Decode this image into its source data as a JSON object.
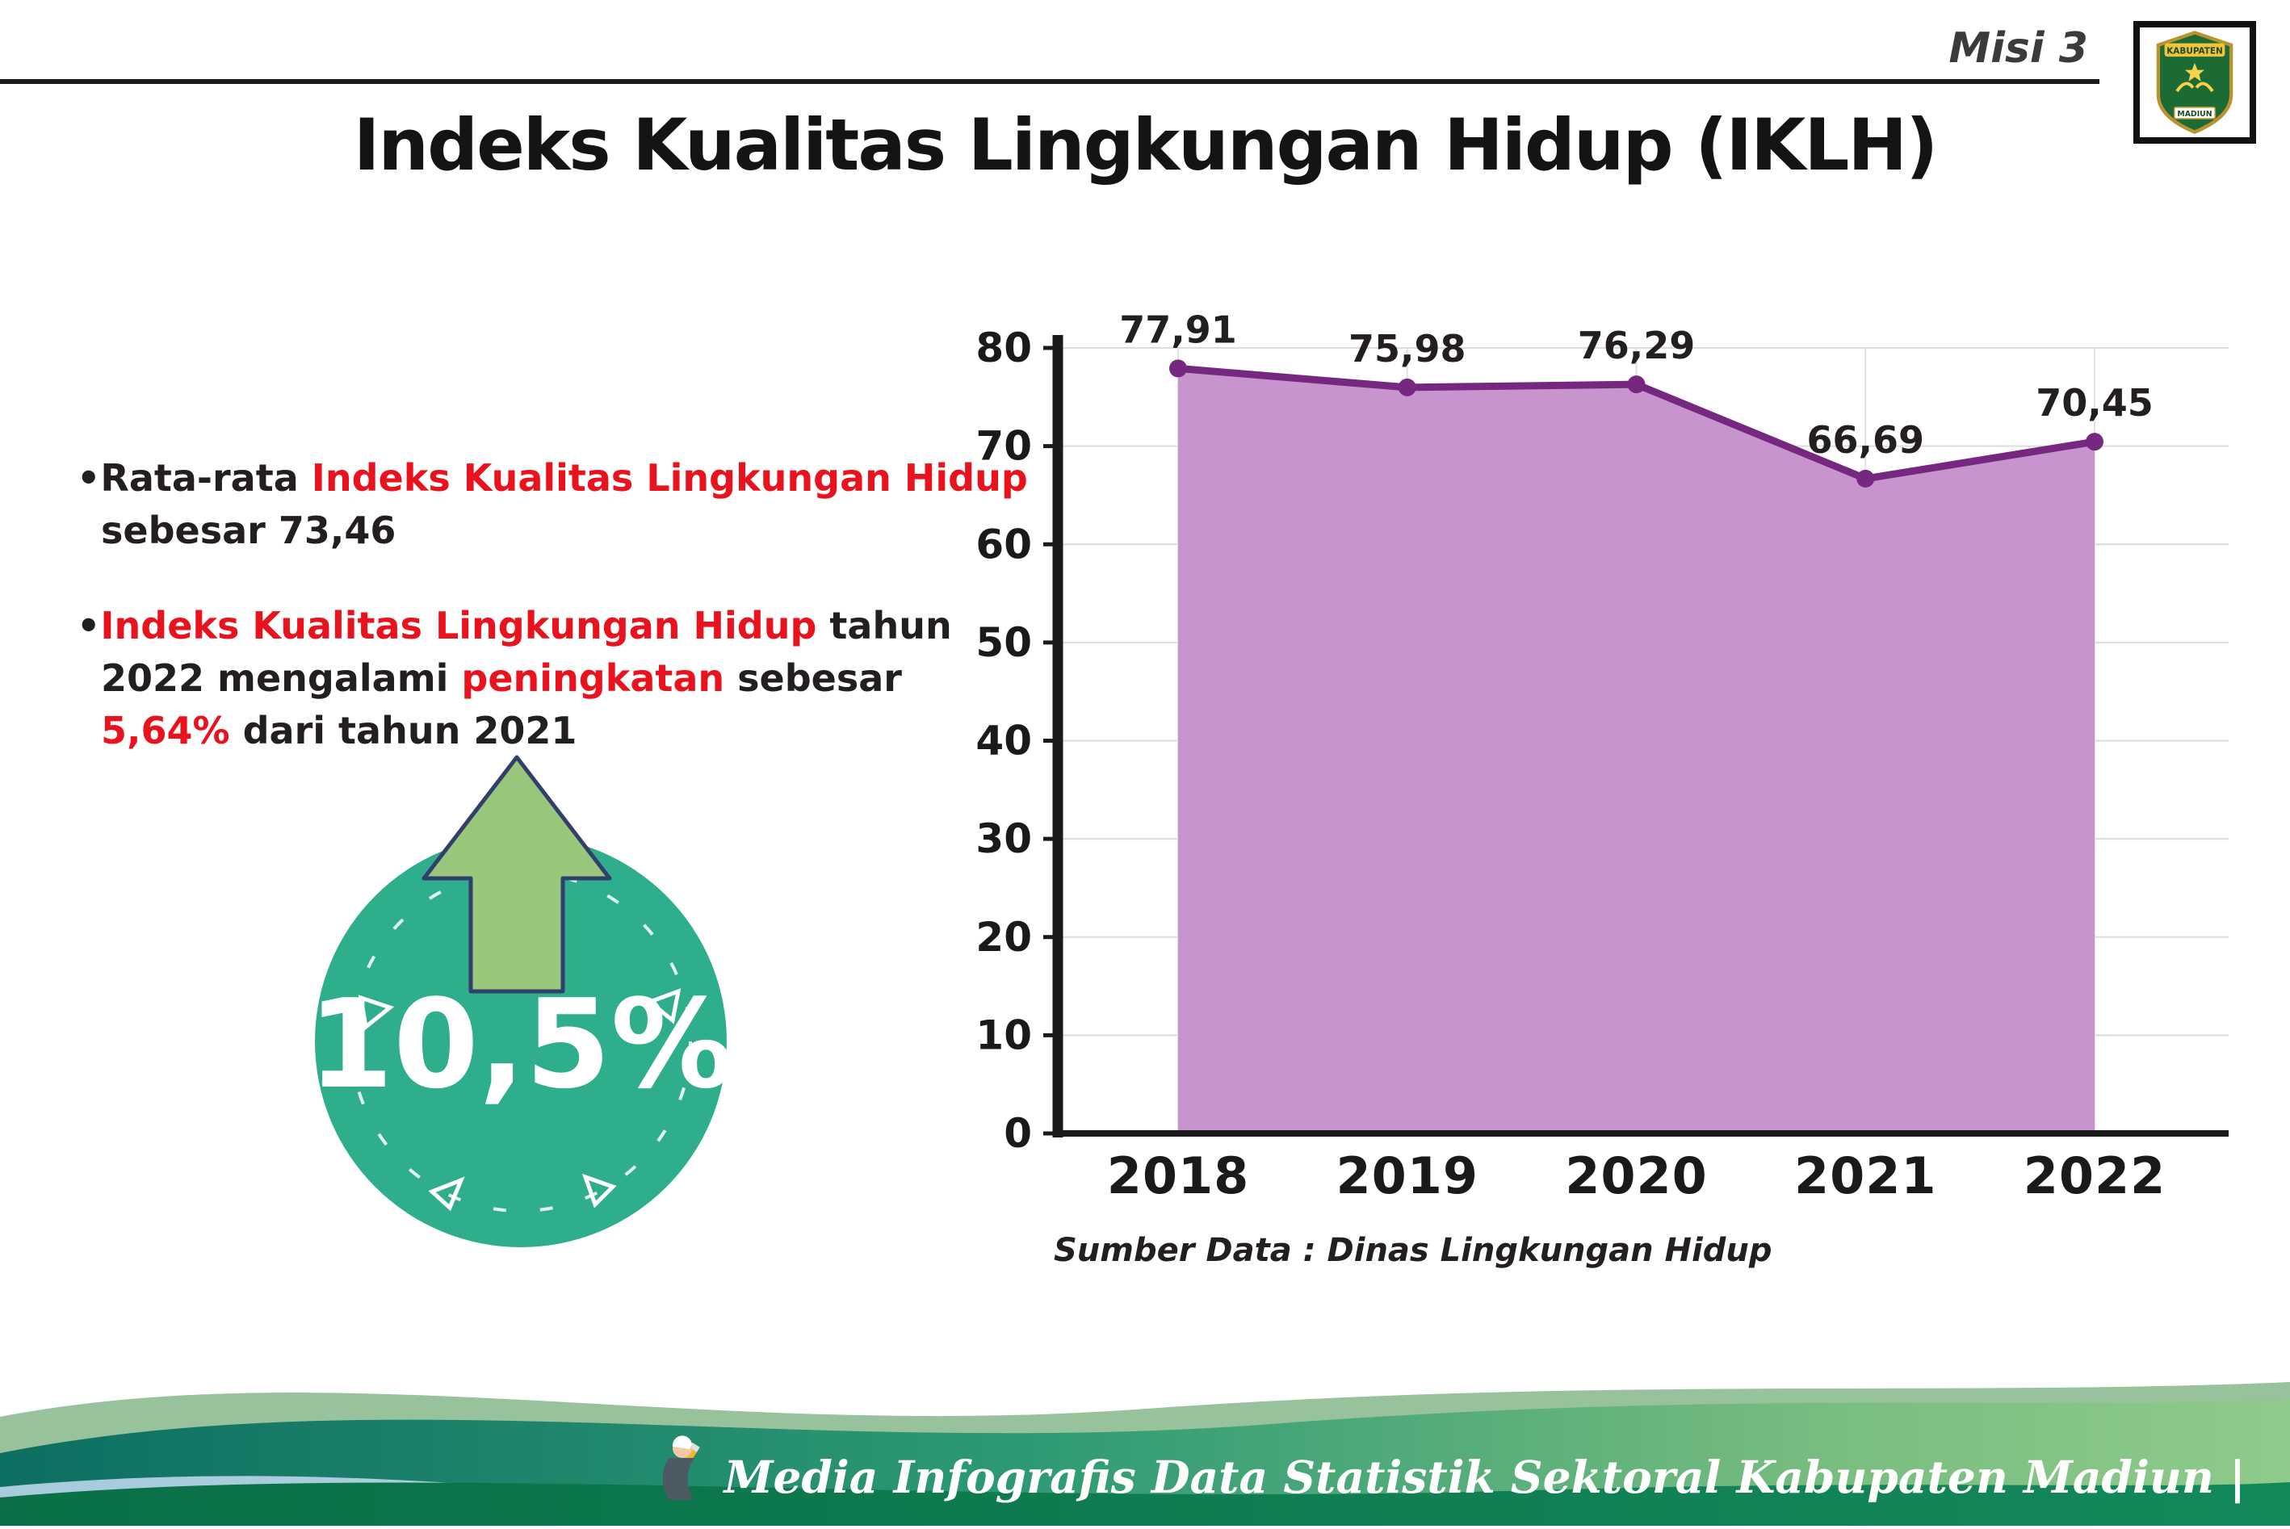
{
  "colors": {
    "teal": "#2fae8e",
    "arrow_green": "#98c67a",
    "arrow_outline": "#333f6b",
    "red": "#e8131d",
    "line_purple": "#76277f",
    "area_purple": "#c794ce",
    "ink": "#231f20"
  },
  "header": {
    "misi_label": "Misi 3",
    "title": "Indeks Kualitas Lingkungan Hidup (IKLH)",
    "logo_top_text": "KABUPATEN",
    "logo_bottom_text": "MADIUN"
  },
  "bullet_glyph": "•",
  "bullets": {
    "b1": {
      "seg1": "Rata-rata ",
      "seg2": "Indeks Kualitas Lingkungan Hidup",
      "seg3": " sebesar 73,46"
    },
    "b2": {
      "seg1": "Indeks Kualitas Lingkungan Hidup",
      "seg2": " tahun 2022 mengalami ",
      "seg3": "peningkatan",
      "seg4": " sebesar ",
      "seg5": "5,64%",
      "seg6": " dari tahun 2021"
    }
  },
  "badge": {
    "value": "10,5%"
  },
  "chart_data": {
    "type": "area",
    "title": "Indeks Kualitas Lingkungan Hidup (IKLH)",
    "categories": [
      "2018",
      "2019",
      "2020",
      "2021",
      "2022"
    ],
    "values": [
      77.91,
      75.98,
      76.29,
      66.69,
      70.45
    ],
    "value_labels": [
      "77,91",
      "75,98",
      "76,29",
      "66,69",
      "70,45"
    ],
    "ylim": [
      0,
      80
    ],
    "ytick_step": 10,
    "yticks": [
      0,
      10,
      20,
      30,
      40,
      50,
      60,
      70,
      80
    ],
    "grid": true,
    "legend": "none",
    "line_color": "#76277f",
    "fill_color": "#c794ce",
    "source": "Sumber Data : Dinas Lingkungan Hidup"
  },
  "footer": {
    "credit": "Media Infografis Data Statistik Sektoral Kabupaten Madiun |"
  }
}
